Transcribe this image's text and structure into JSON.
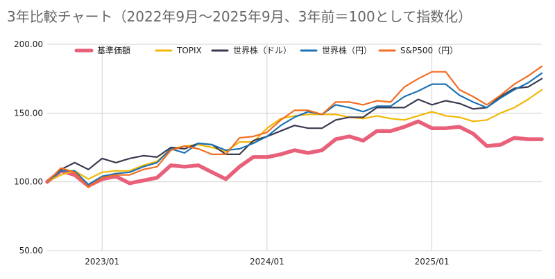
{
  "chart_data": {
    "type": "line",
    "title": "3年比較チャート（2022年9月〜2025年9月、3年前＝100として指数化）",
    "ylim": [
      50,
      200
    ],
    "y_ticks": [
      "200.00",
      "150.00",
      "100.00",
      "50.00"
    ],
    "y_tick_values": [
      200,
      150,
      100,
      50
    ],
    "x_ticks": [
      "2023/01",
      "2024/01",
      "2025/01"
    ],
    "x_tick_positions": [
      4,
      16,
      28
    ],
    "x_range": [
      0,
      36
    ],
    "grid": true,
    "legend_position": "top",
    "series": [
      {
        "name": "基準価額",
        "color": "#e8607a",
        "values": [
          100,
          108,
          105,
          97,
          102,
          104,
          99,
          101,
          103,
          112,
          111,
          112,
          107,
          102,
          111,
          118,
          118,
          120,
          123,
          121,
          123,
          131,
          133,
          130,
          137,
          137,
          140,
          144,
          139,
          139,
          140,
          135,
          126,
          127,
          132,
          131,
          131
        ]
      },
      {
        "name": "TOPIX",
        "color": "#f2b705",
        "values": [
          100,
          105,
          108,
          102,
          107,
          108,
          108,
          112,
          115,
          124,
          126,
          127,
          125,
          122,
          129,
          129,
          139,
          146,
          148,
          149,
          149,
          149,
          147,
          146,
          148,
          146,
          145,
          148,
          151,
          148,
          147,
          144,
          145,
          150,
          154,
          160,
          167
        ]
      },
      {
        "name": "世界株（ドル）",
        "color": "#3a3a50",
        "values": [
          100,
          109,
          114,
          109,
          117,
          114,
          117,
          119,
          118,
          125,
          124,
          128,
          127,
          120,
          120,
          130,
          133,
          137,
          141,
          139,
          139,
          145,
          147,
          147,
          154,
          154,
          154,
          160,
          156,
          159,
          157,
          153,
          154,
          162,
          168,
          169,
          175
        ]
      },
      {
        "name": "世界株（円）",
        "color": "#1c73b4",
        "values": [
          100,
          108,
          108,
          98,
          104,
          106,
          107,
          111,
          114,
          124,
          121,
          128,
          127,
          123,
          124,
          128,
          133,
          141,
          147,
          151,
          149,
          156,
          154,
          151,
          155,
          155,
          162,
          166,
          171,
          171,
          163,
          158,
          154,
          161,
          167,
          172,
          179
        ]
      },
      {
        "name": "S&P500（円）",
        "color": "#f26d21",
        "values": [
          100,
          110,
          107,
          96,
          103,
          105,
          105,
          109,
          111,
          123,
          126,
          124,
          120,
          120,
          132,
          133,
          136,
          145,
          152,
          152,
          149,
          158,
          158,
          156,
          159,
          158,
          169,
          175,
          180,
          180,
          167,
          162,
          156,
          163,
          171,
          177,
          184
        ]
      }
    ]
  }
}
